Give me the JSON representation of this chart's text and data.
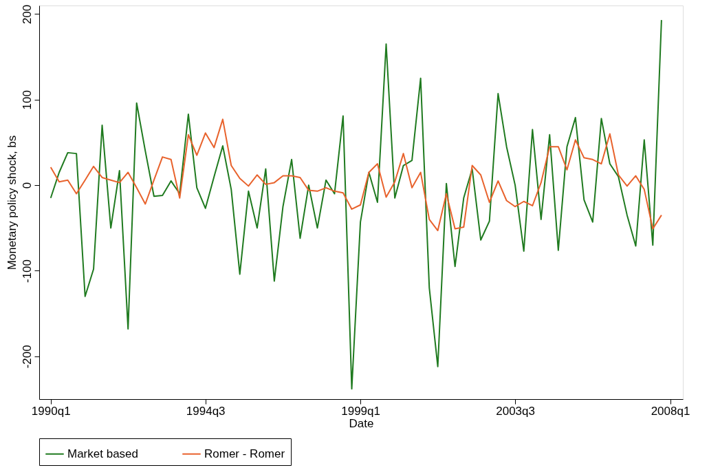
{
  "chart_data": {
    "type": "line",
    "xlabel": "Date",
    "ylabel": "Monetary policy shock, bs",
    "x": [
      "1990-01",
      "1990-04",
      "1990-07",
      "1990-10",
      "1991-01",
      "1991-04",
      "1991-07",
      "1991-10",
      "1992-01",
      "1992-04",
      "1992-07",
      "1992-10",
      "1993-01",
      "1993-04",
      "1993-07",
      "1993-10",
      "1994-01",
      "1994-04",
      "1994-07",
      "1994-10",
      "1995-01",
      "1995-04",
      "1995-07",
      "1995-10",
      "1996-01",
      "1996-04",
      "1996-07",
      "1996-10",
      "1997-01",
      "1997-04",
      "1997-07",
      "1997-10",
      "1998-01",
      "1998-04",
      "1998-07",
      "1998-10",
      "1999-01",
      "1999-04",
      "1999-07",
      "1999-10",
      "2000-01",
      "2000-04",
      "2000-07",
      "2000-10",
      "2001-01",
      "2001-04",
      "2001-07",
      "2001-10",
      "2002-01",
      "2002-04",
      "2002-07",
      "2002-10",
      "2003-01",
      "2003-04",
      "2003-07",
      "2003-10",
      "2004-01",
      "2004-04",
      "2004-07",
      "2004-10",
      "2005-01",
      "2005-04",
      "2005-07",
      "2005-10",
      "2006-01",
      "2006-04",
      "2006-07",
      "2006-10",
      "2007-01",
      "2007-04",
      "2007-07",
      "2007-10"
    ],
    "series": [
      {
        "name": "Market based",
        "color": "#1f7a1f",
        "values": [
          -15,
          15,
          38,
          37,
          -130,
          -98,
          70,
          -50,
          17,
          -168,
          96,
          40,
          -13,
          -12,
          5,
          -10,
          83,
          -3,
          -27,
          10,
          46,
          -5,
          -104,
          -7,
          -50,
          19,
          -112,
          -25,
          30,
          -62,
          0,
          -50,
          6,
          -10,
          81,
          -238,
          -43,
          15,
          -20,
          165,
          -15,
          23,
          29,
          125,
          -120,
          -212,
          2,
          -95,
          -15,
          19,
          -64,
          -42,
          107,
          45,
          0,
          -77,
          65,
          -40,
          59,
          -76,
          45,
          79,
          -17,
          -43,
          78,
          25,
          10,
          -35,
          -71,
          53,
          -70,
          193
        ]
      },
      {
        "name": "Romer - Romer",
        "color": "#e8622c",
        "values": [
          21,
          4,
          6,
          -10,
          6,
          22,
          9,
          6,
          3,
          15,
          -3,
          -22,
          6,
          33,
          30,
          -15,
          59,
          35,
          61,
          44,
          77,
          23,
          8,
          -1,
          12,
          1,
          3,
          11,
          11,
          9,
          -6,
          -7,
          -3,
          -7,
          -9,
          -28,
          -23,
          15,
          25,
          -14,
          4,
          37,
          -3,
          15,
          -40,
          -53,
          -10,
          -51,
          -49,
          23,
          12,
          -20,
          5,
          -18,
          -25,
          -19,
          -24,
          3,
          45,
          45,
          18,
          53,
          32,
          30,
          25,
          60,
          12,
          -1,
          11,
          -5,
          -51,
          -35
        ]
      }
    ],
    "xlim": [
      "1989-09-01",
      "2008-05-15"
    ],
    "ylim": [
      -250,
      210
    ],
    "xticks": [
      {
        "value": "1990-01",
        "label": "1990q1"
      },
      {
        "value": "1994-07",
        "label": "1994q3"
      },
      {
        "value": "1999-01",
        "label": "1999q1"
      },
      {
        "value": "2003-07",
        "label": "2003q3"
      },
      {
        "value": "2008-01",
        "label": "2008q1"
      }
    ],
    "yticks": [
      -200,
      -100,
      0,
      100,
      200
    ],
    "legend": "bottom",
    "line_style": "solid"
  }
}
